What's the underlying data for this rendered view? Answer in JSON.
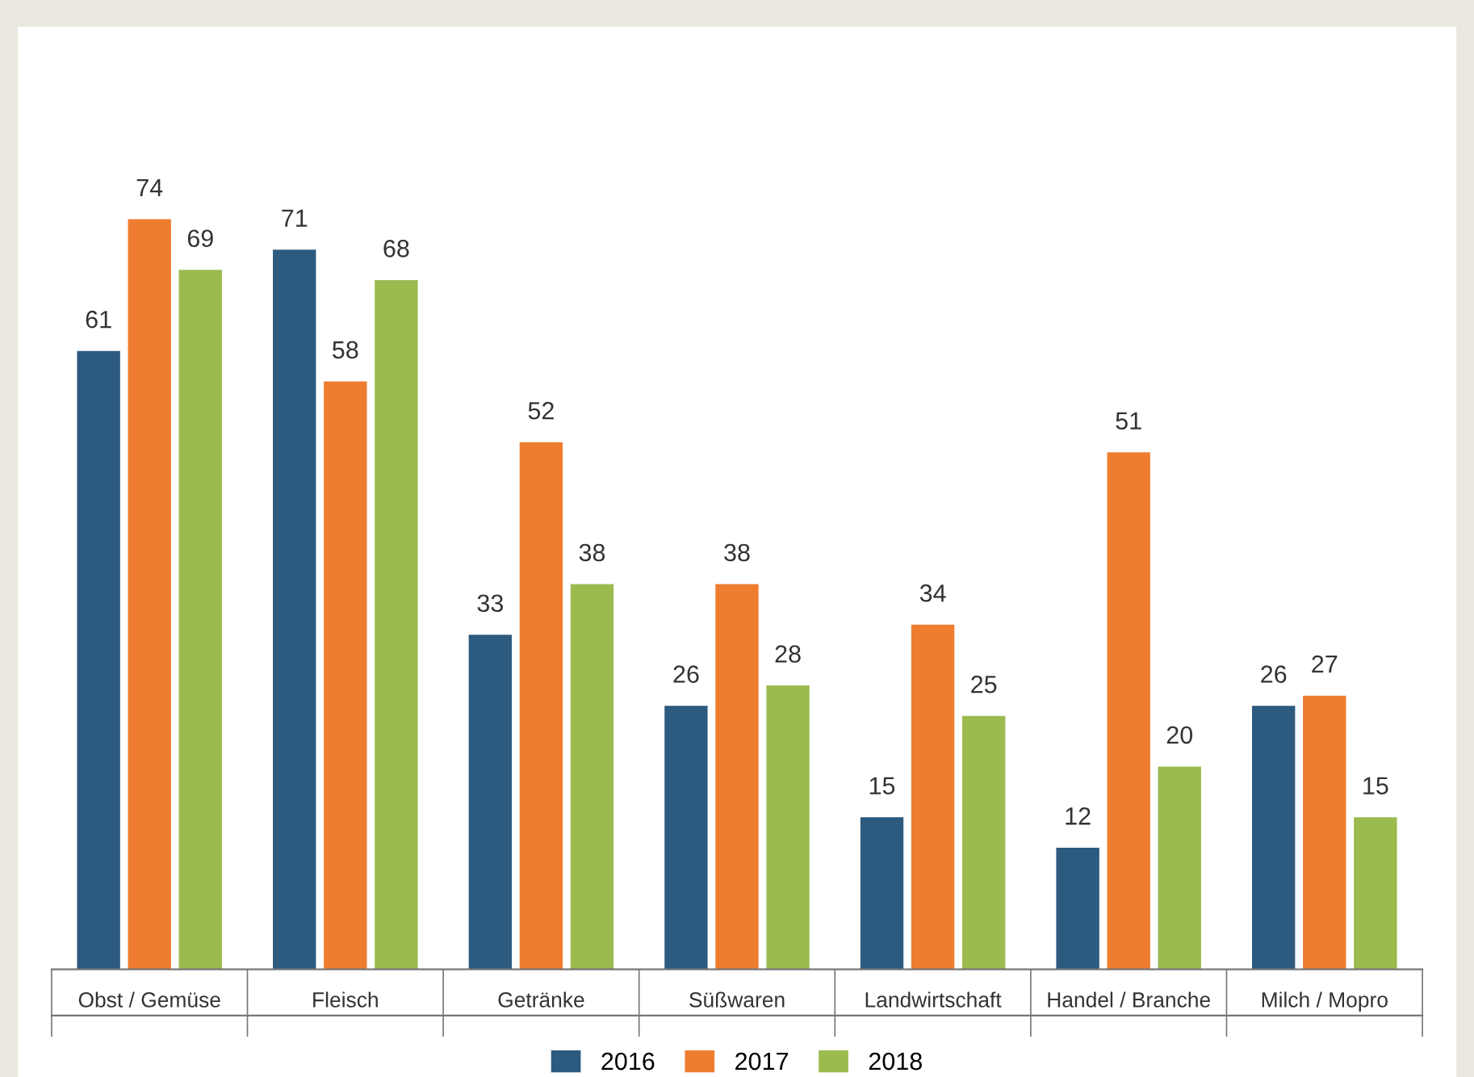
{
  "chart_data": {
    "type": "bar",
    "categories": [
      "Obst / Gemüse",
      "Fleisch",
      "Getränke",
      "Süßwaren",
      "Landwirtschaft",
      "Handel / Branche",
      "Milch / Mopro"
    ],
    "series": [
      {
        "name": "2016",
        "color": "#2d5a7f",
        "values": [
          61,
          71,
          33,
          26,
          15,
          12,
          26
        ]
      },
      {
        "name": "2017",
        "color": "#ef7d2f",
        "values": [
          74,
          58,
          52,
          38,
          34,
          51,
          27
        ]
      },
      {
        "name": "2018",
        "color": "#9bbb4f",
        "values": [
          69,
          68,
          38,
          28,
          25,
          20,
          15
        ]
      }
    ],
    "data_labels": true,
    "legend": "bottom",
    "grid": false
  }
}
